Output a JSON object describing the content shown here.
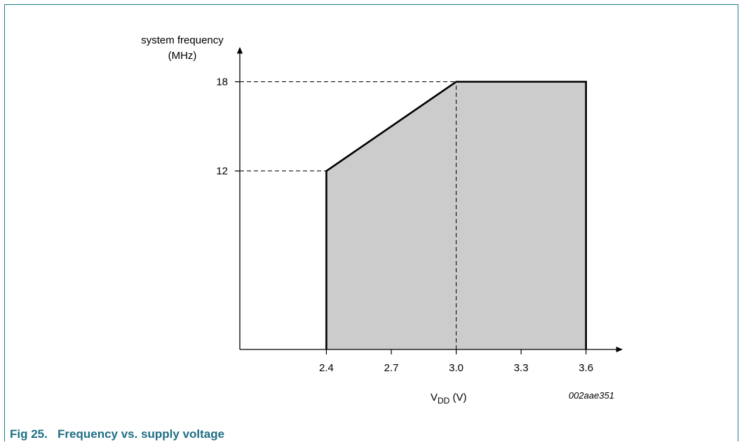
{
  "figure": {
    "caption": "Fig 25.   Frequency vs. supply voltage",
    "code": "002aae351",
    "frame_color": "#1f7a8c",
    "caption_color": "#1f6f84"
  },
  "chart_data": {
    "type": "area",
    "ylabel_line1": "system frequency",
    "ylabel_line2": "(MHz)",
    "xlabel_main": "V",
    "xlabel_sub": "DD",
    "xlabel_unit": " (V)",
    "xlim": [
      2.0,
      3.75
    ],
    "ylim": [
      0,
      20.1
    ],
    "x_ticks": [
      {
        "value": 2.4,
        "label": "2.4"
      },
      {
        "value": 2.7,
        "label": "2.7"
      },
      {
        "value": 3.0,
        "label": "3.0"
      },
      {
        "value": 3.3,
        "label": "3.3"
      },
      {
        "value": 3.6,
        "label": "3.6"
      }
    ],
    "y_ticks": [
      {
        "value": 12,
        "label": "12"
      },
      {
        "value": 18,
        "label": "18"
      }
    ],
    "boundary": [
      {
        "x": 2.4,
        "y": 0
      },
      {
        "x": 2.4,
        "y": 12
      },
      {
        "x": 3.0,
        "y": 18
      },
      {
        "x": 3.6,
        "y": 18
      },
      {
        "x": 3.6,
        "y": 0
      }
    ],
    "fill_color": "#cccccc",
    "guide_lines": [
      {
        "from": {
          "x": 2.0,
          "y": 12
        },
        "to": {
          "x": 2.4,
          "y": 12
        }
      },
      {
        "from": {
          "x": 2.0,
          "y": 18
        },
        "to": {
          "x": 3.0,
          "y": 18
        }
      },
      {
        "from": {
          "x": 3.0,
          "y": 0
        },
        "to": {
          "x": 3.0,
          "y": 18
        }
      }
    ],
    "grid": false,
    "legend": "none"
  }
}
